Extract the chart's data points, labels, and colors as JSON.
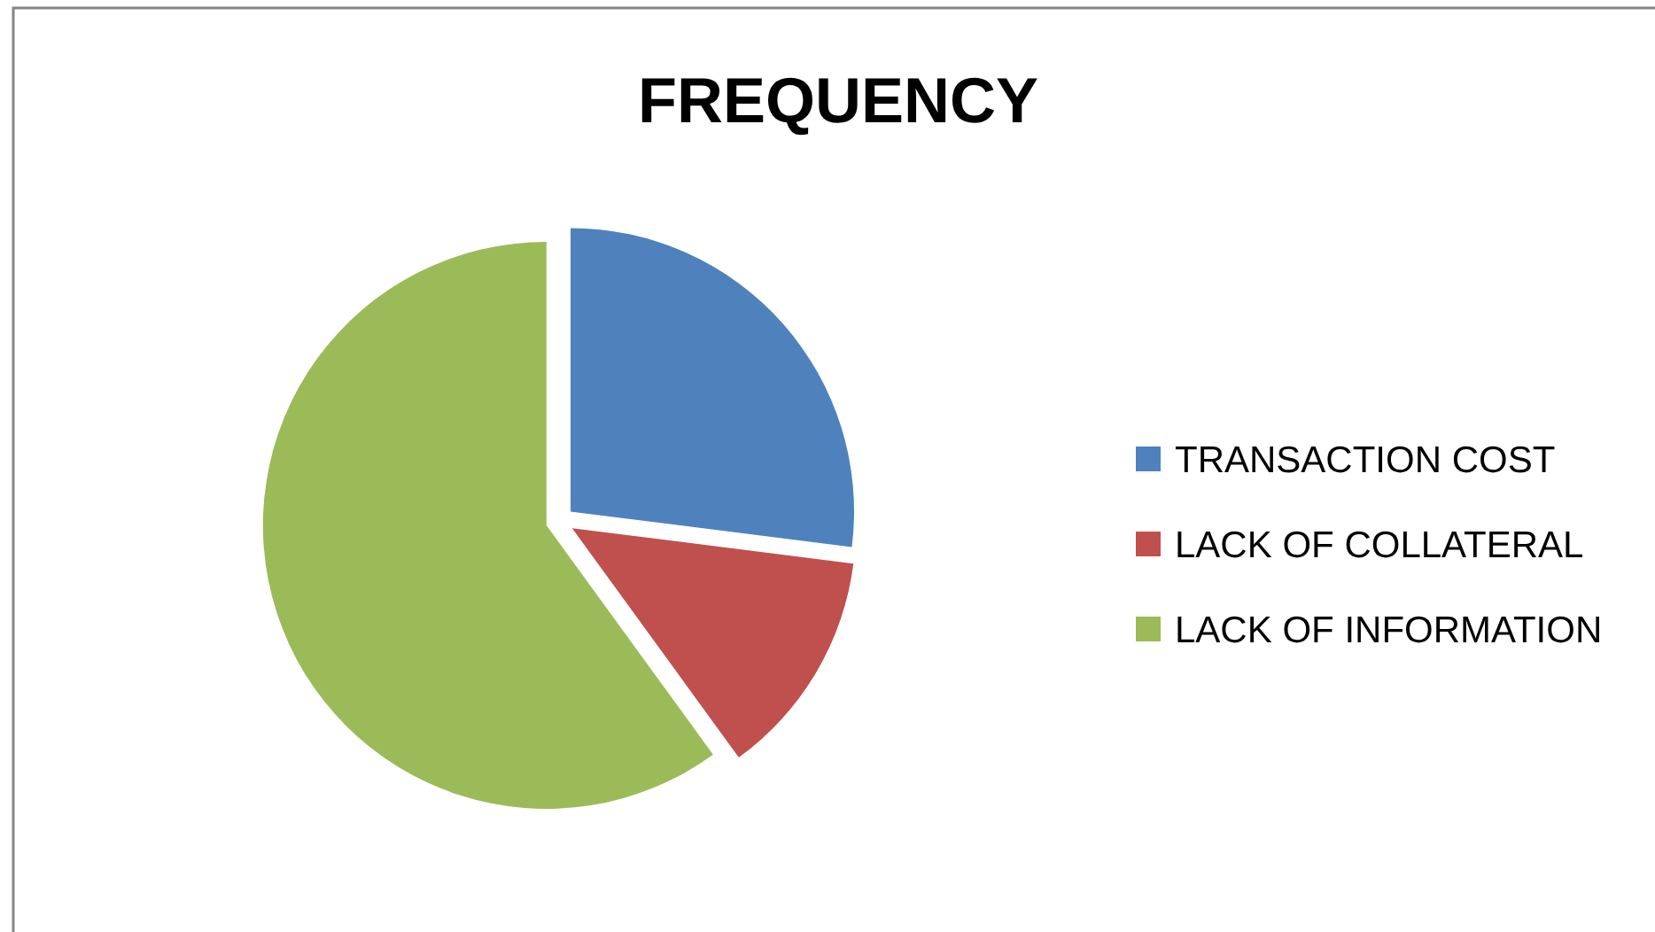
{
  "chart_data": {
    "type": "pie",
    "title": "FREQUENCY",
    "categories": [
      "TRANSACTION COST",
      "LACK OF COLLATERAL",
      "LACK OF INFORMATION"
    ],
    "values": [
      27,
      13,
      60
    ],
    "colors": [
      "#4f81bd",
      "#c0504d",
      "#9bbb59"
    ],
    "legend": "right"
  }
}
